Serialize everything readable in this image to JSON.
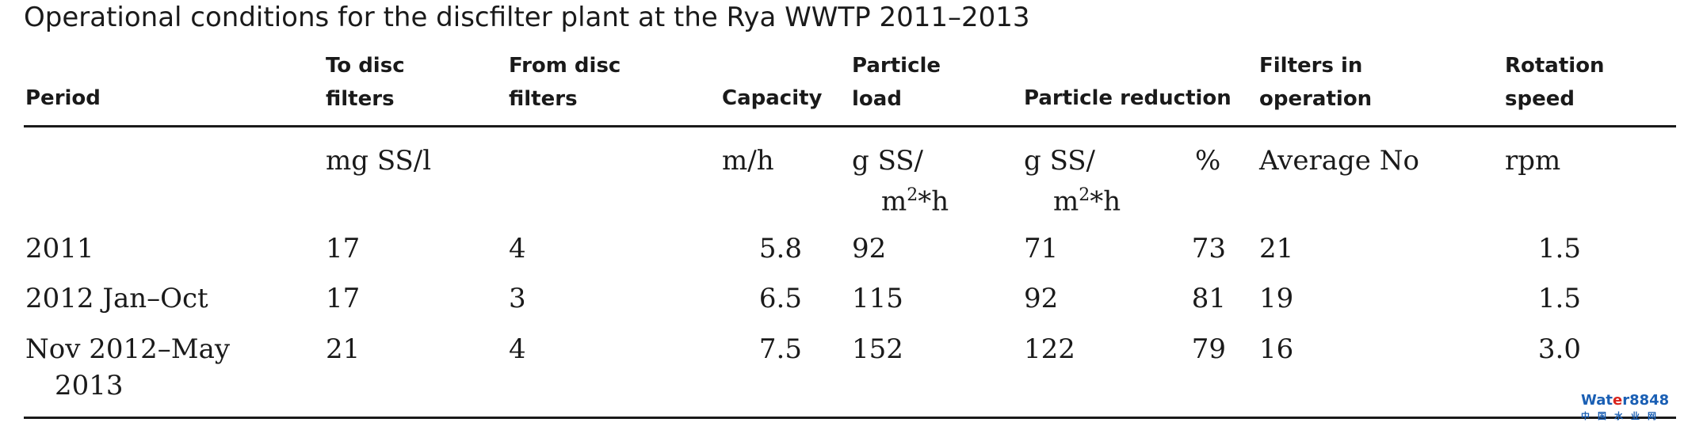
{
  "title": "Operational conditions for the discfilter plant at the Rya WWTP 2011–2013",
  "headers": {
    "period": "Period",
    "to_disc_l1": "To disc",
    "to_disc_l2": "filters",
    "from_disc_l1": "From disc",
    "from_disc_l2": "filters",
    "capacity": "Capacity",
    "particle_load_l1": "Particle",
    "particle_load_l2": "load",
    "particle_reduction": "Particle reduction",
    "filters_l1": "Filters in",
    "filters_l2": "operation",
    "rotation_l1": "Rotation",
    "rotation_l2": "speed"
  },
  "units": {
    "to_disc": "mg SS/l",
    "capacity": "m/h",
    "load_l1": "g SS/",
    "load_l2": "m",
    "load_sup": "2",
    "load_tail": "*h",
    "reduction_l1": "g SS/",
    "reduction_l2": "m",
    "reduction_sup": "2",
    "reduction_tail": "*h",
    "reduction_pct": "%",
    "filters": "Average No",
    "rotation": "rpm"
  },
  "rows": [
    {
      "period": "2011",
      "period_l2": "",
      "to_disc": "17",
      "from_disc": "4",
      "capacity": "5.8",
      "load": "92",
      "reduction": "71",
      "reduction_pct": "73",
      "filters": "21",
      "rotation": "1.5"
    },
    {
      "period": "2012 Jan–Oct",
      "period_l2": "",
      "to_disc": "17",
      "from_disc": "3",
      "capacity": "6.5",
      "load": "115",
      "reduction": "92",
      "reduction_pct": "81",
      "filters": "19",
      "rotation": "1.5"
    },
    {
      "period": "Nov 2012–May",
      "period_l2": "2013",
      "to_disc": "21",
      "from_disc": "4",
      "capacity": "7.5",
      "load": "152",
      "reduction": "122",
      "reduction_pct": "79",
      "filters": "16",
      "rotation": "3.0"
    }
  ],
  "watermark": {
    "pre": "Wat",
    "accent": "e",
    "post": "r8848",
    "sub": "中国水业网"
  }
}
